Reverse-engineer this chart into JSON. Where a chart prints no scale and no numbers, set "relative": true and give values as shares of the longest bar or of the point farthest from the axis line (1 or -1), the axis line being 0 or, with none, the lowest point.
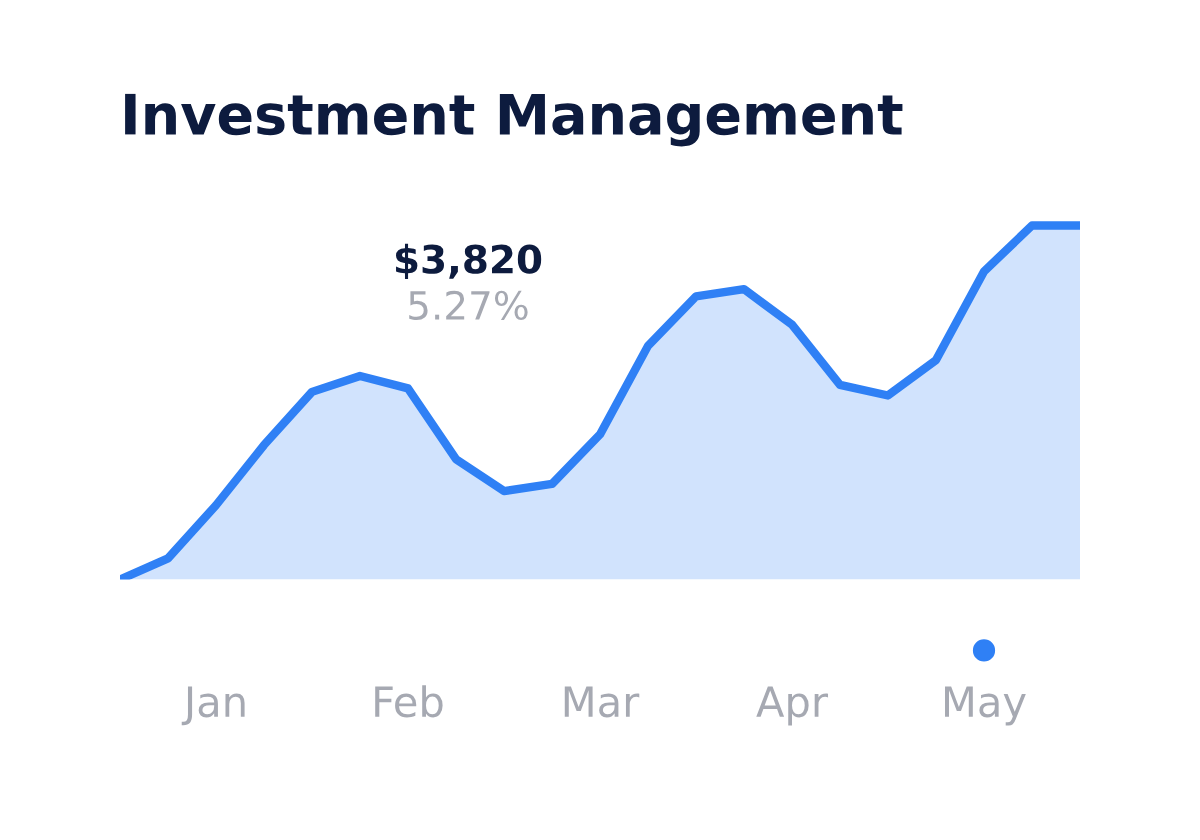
{
  "chart_data": {
    "type": "area",
    "title": "Investment Management",
    "relative": true,
    "categories": [
      null,
      null,
      "Jan",
      null,
      null,
      null,
      "Feb",
      null,
      null,
      null,
      "Mar",
      null,
      null,
      null,
      "Apr",
      null,
      null,
      null,
      "May",
      null,
      null
    ],
    "series": [
      {
        "color": "#2f80f5",
        "values": [
          0,
          0.06,
          0.21,
          0.38,
          0.53,
          0.575,
          0.54,
          0.34,
          0.25,
          0.27,
          0.41,
          0.66,
          0.8,
          0.82,
          0.72,
          0.55,
          0.52,
          0.62,
          0.87,
          1,
          1
        ]
      }
    ],
    "annotations": [
      "$3,820",
      "5.27%"
    ],
    "grid": false,
    "legend": false,
    "marker": "none",
    "line_style": "solid"
  }
}
